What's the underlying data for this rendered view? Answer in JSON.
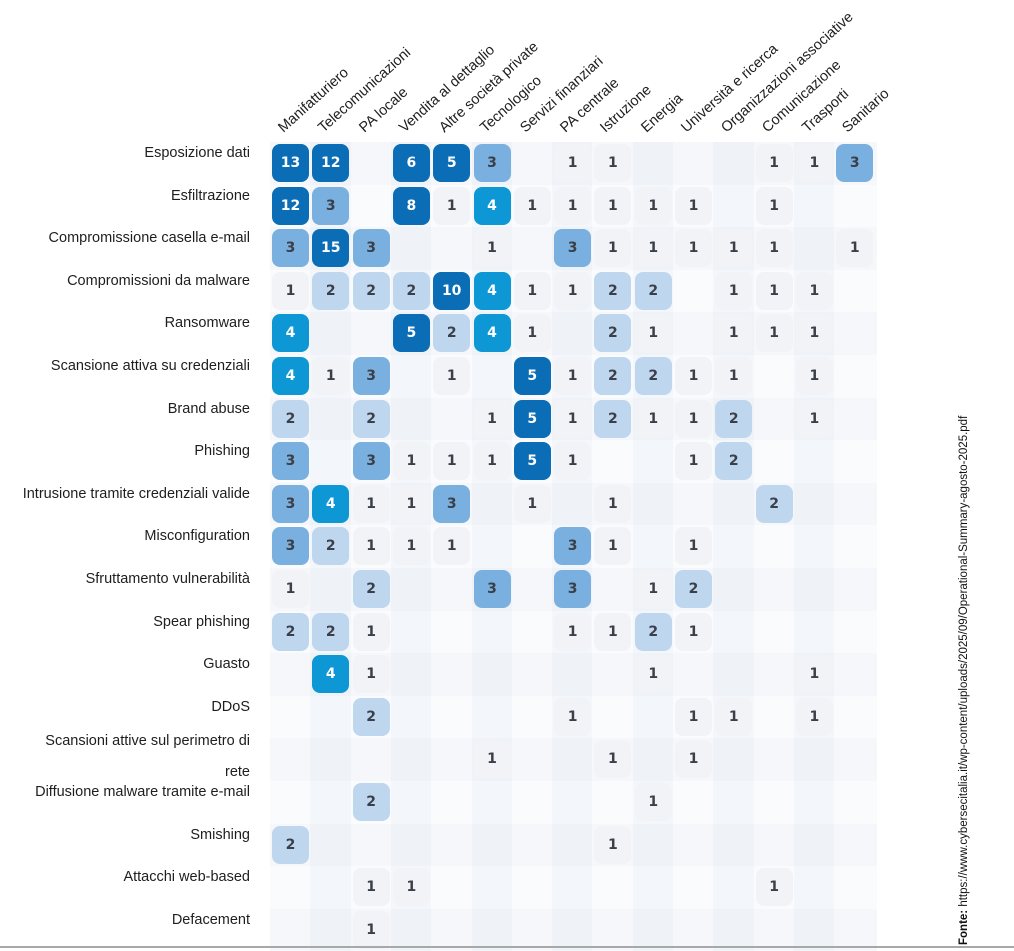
{
  "chart_data": {
    "type": "heatmap",
    "title": "",
    "columns": [
      "Manifatturiero",
      "Telecomunicazioni",
      "PA locale",
      "Vendita al dettaglio",
      "Altre società private",
      "Tecnologico",
      "Servizi finanziari",
      "PA centrale",
      "Istruzione",
      "Energia",
      "Università e ricerca",
      "Organizzazioni associative",
      "Comunicazione",
      "Trasporti",
      "Sanitario"
    ],
    "rows": [
      {
        "label": "Esposizione dati",
        "values": [
          13,
          12,
          null,
          6,
          5,
          3,
          null,
          1,
          1,
          null,
          null,
          null,
          1,
          1,
          3
        ]
      },
      {
        "label": "Esfiltrazione",
        "values": [
          12,
          3,
          null,
          8,
          1,
          4,
          1,
          1,
          1,
          1,
          1,
          null,
          1,
          null,
          null
        ]
      },
      {
        "label": "Compromissione casella e-mail",
        "values": [
          3,
          15,
          3,
          null,
          null,
          1,
          null,
          3,
          1,
          1,
          1,
          1,
          1,
          null,
          1
        ]
      },
      {
        "label": "Compromissioni da malware",
        "values": [
          1,
          2,
          2,
          2,
          10,
          4,
          1,
          1,
          2,
          2,
          null,
          1,
          1,
          1,
          null
        ]
      },
      {
        "label": "Ransomware",
        "values": [
          4,
          null,
          null,
          5,
          2,
          4,
          1,
          null,
          2,
          1,
          null,
          1,
          1,
          1,
          null
        ]
      },
      {
        "label": "Scansione attiva su credenziali",
        "values": [
          4,
          1,
          3,
          null,
          1,
          null,
          5,
          1,
          2,
          2,
          1,
          1,
          null,
          1,
          null
        ]
      },
      {
        "label": "Brand abuse",
        "values": [
          2,
          null,
          2,
          null,
          null,
          1,
          5,
          1,
          2,
          1,
          1,
          2,
          null,
          1,
          null
        ]
      },
      {
        "label": "Phishing",
        "values": [
          3,
          null,
          3,
          1,
          1,
          1,
          5,
          1,
          null,
          null,
          1,
          2,
          null,
          null,
          null
        ]
      },
      {
        "label": "Intrusione tramite credenziali valide",
        "values": [
          3,
          4,
          1,
          1,
          3,
          null,
          1,
          null,
          1,
          null,
          null,
          null,
          2,
          null,
          null
        ]
      },
      {
        "label": "Misconfiguration",
        "values": [
          3,
          2,
          1,
          1,
          1,
          null,
          null,
          3,
          1,
          null,
          1,
          null,
          null,
          null,
          null
        ]
      },
      {
        "label": "Sfruttamento vulnerabilità",
        "values": [
          1,
          null,
          2,
          null,
          null,
          3,
          null,
          3,
          null,
          1,
          2,
          null,
          null,
          null,
          null
        ]
      },
      {
        "label": "Spear phishing",
        "values": [
          2,
          2,
          1,
          null,
          null,
          null,
          null,
          1,
          1,
          2,
          1,
          null,
          null,
          null,
          null
        ]
      },
      {
        "label": "Guasto",
        "values": [
          null,
          4,
          1,
          null,
          null,
          null,
          null,
          null,
          null,
          1,
          null,
          null,
          null,
          1,
          null
        ]
      },
      {
        "label": "DDoS",
        "values": [
          null,
          null,
          2,
          null,
          null,
          null,
          null,
          1,
          null,
          null,
          1,
          1,
          null,
          1,
          null
        ]
      },
      {
        "label": "Scansioni attive sul perimetro di rete",
        "label_lines": [
          "Scansioni attive sul perimetro di",
          "rete"
        ],
        "values": [
          null,
          null,
          null,
          null,
          null,
          1,
          null,
          null,
          1,
          null,
          1,
          null,
          null,
          null,
          null
        ]
      },
      {
        "label": "Diffusione malware tramite e-mail",
        "values": [
          null,
          null,
          2,
          null,
          null,
          null,
          null,
          null,
          null,
          1,
          null,
          null,
          null,
          null,
          null
        ]
      },
      {
        "label": "Smishing",
        "values": [
          2,
          null,
          null,
          null,
          null,
          null,
          null,
          null,
          1,
          null,
          null,
          null,
          null,
          null,
          null
        ]
      },
      {
        "label": "Attacchi web-based",
        "values": [
          null,
          null,
          1,
          1,
          null,
          null,
          null,
          null,
          null,
          null,
          null,
          null,
          1,
          null,
          null
        ]
      },
      {
        "label": "Defacement",
        "values": [
          null,
          null,
          1,
          null,
          null,
          null,
          null,
          null,
          null,
          null,
          null,
          null,
          null,
          null,
          null
        ]
      }
    ],
    "color_scale": {
      "1": "#f1f3f7",
      "2": "#bfd6ef",
      "3": "#7ab0df",
      "4": "#0d98d5",
      "5+": "#0a6db5"
    },
    "legend": "none"
  },
  "source": {
    "label": "Fonte:",
    "url": "https://www.cybersecitalia.it/wp-content/uploads/2025/09/Operational-Summary-agosto-2025.pdf"
  }
}
